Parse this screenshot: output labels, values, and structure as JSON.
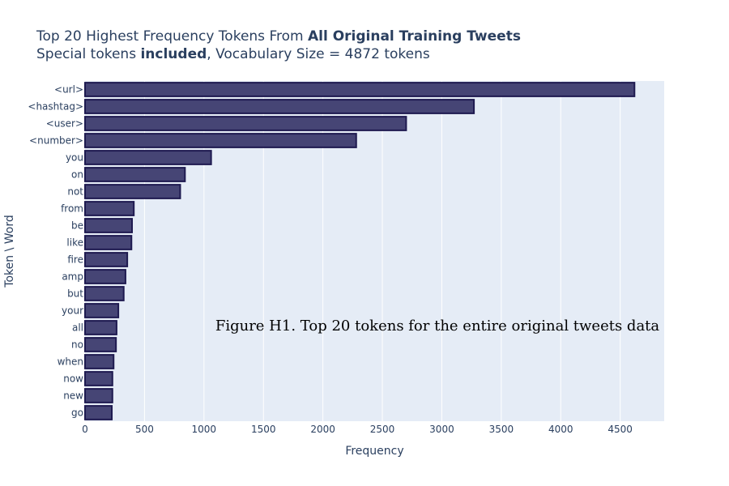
{
  "title": {
    "line1_prefix": "Top 20 Highest Frequency Tokens From ",
    "line1_bold": "All Original Training Tweets",
    "line2_prefix": "Special tokens ",
    "line2_bold": "included",
    "line2_suffix": ", Vocabulary Size = 4872 tokens"
  },
  "annotation": "Figure H1.  Top 20 tokens for the entire original tweets data",
  "colors": {
    "bar_fill": "#464575",
    "bar_stroke": "#1e1a50",
    "plot_bg": "#e5ecf6",
    "grid": "#ffffff",
    "text": "#2a3f5f"
  },
  "chart_data": {
    "type": "bar",
    "orientation": "horizontal",
    "xlabel": "Frequency",
    "ylabel": "Token \\ Word",
    "xlim": [
      0,
      4870
    ],
    "xticks": [
      0,
      500,
      1000,
      1500,
      2000,
      2500,
      3000,
      3500,
      4000,
      4500
    ],
    "grid": true,
    "legend": "none",
    "categories": [
      "<url>",
      "<hashtag>",
      "<user>",
      "<number>",
      "you",
      "on",
      "not",
      "from",
      "be",
      "like",
      "fire",
      "amp",
      "but",
      "your",
      "all",
      "no",
      "when",
      "now",
      "new",
      "go"
    ],
    "values": [
      4620,
      3270,
      2700,
      2280,
      1060,
      840,
      800,
      410,
      395,
      390,
      355,
      340,
      325,
      280,
      265,
      260,
      240,
      230,
      230,
      225
    ]
  }
}
